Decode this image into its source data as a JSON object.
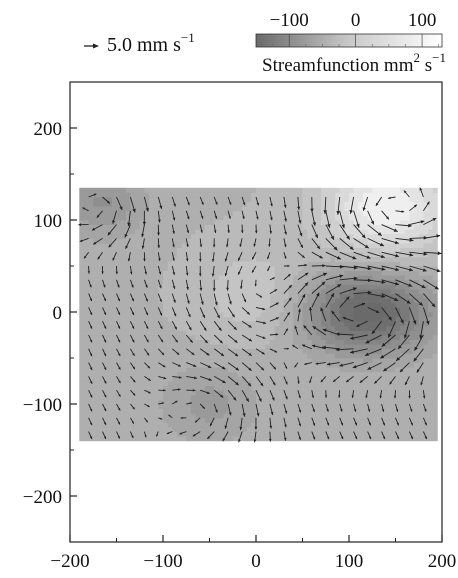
{
  "chart_data": {
    "type": "heatmap",
    "subtype": "streamfunction contours with velocity vectors",
    "colorbar": {
      "title_main": "Streamfunction mm",
      "title_sup1": "2",
      "title_mid": " s",
      "title_sup2": "−1",
      "ticks": [
        "−100",
        "0",
        "100"
      ],
      "range": [
        -150,
        130
      ]
    },
    "reference_vector": {
      "label_main": "5.0 mm s",
      "label_sup": "−1",
      "magnitude_mm_s": 5.0
    },
    "x_axis": {
      "range": [
        -200,
        200
      ],
      "ticks": [
        -200,
        -100,
        0,
        100,
        200
      ],
      "tick_labels": [
        "−200",
        "−100",
        "0",
        "100",
        "200"
      ]
    },
    "y_axis": {
      "range": [
        -250,
        250
      ],
      "ticks": [
        200,
        100,
        0,
        -100,
        -200
      ],
      "tick_labels": [
        "200",
        "100",
        "0",
        "−100",
        "−200"
      ]
    },
    "data_domain": {
      "x": [
        -190,
        195
      ],
      "y": [
        -140,
        135
      ]
    },
    "field_features": [
      {
        "kind": "minimum",
        "x": 120,
        "y": 0,
        "value": -150
      },
      {
        "kind": "minimum",
        "x": -165,
        "y": 120,
        "value": -60
      },
      {
        "kind": "minimum",
        "x": -50,
        "y": -100,
        "value": -45
      },
      {
        "kind": "maximum",
        "x": 140,
        "y": 115,
        "value": 120
      },
      {
        "kind": "maximum",
        "x": 0,
        "y": 20,
        "value": 40
      }
    ],
    "vector_grid": {
      "x_start": -180,
      "x_step": 15,
      "y_start": -130,
      "y_step": 15
    },
    "grid": false,
    "colors": {
      "low": "#6a6a6a",
      "high": "#ffffff",
      "vectors": "#222222"
    }
  }
}
